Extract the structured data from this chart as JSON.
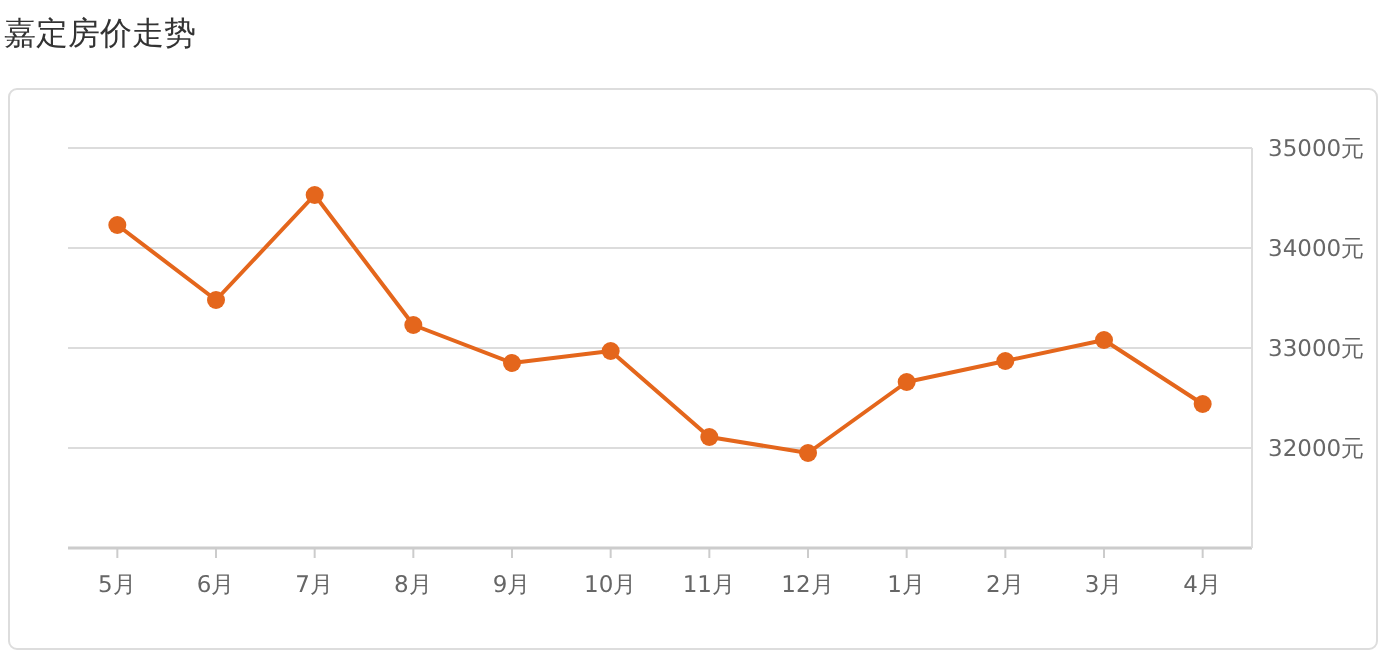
{
  "chart_data": {
    "type": "line",
    "title": "嘉定房价走势",
    "categories": [
      "5月",
      "6月",
      "7月",
      "8月",
      "9月",
      "10月",
      "11月",
      "12月",
      "1月",
      "2月",
      "3月",
      "4月"
    ],
    "series": [
      {
        "color": "#e4661c",
        "values": [
          34230,
          33480,
          34530,
          33230,
          32850,
          32970,
          32110,
          31950,
          32660,
          32870,
          33080,
          32440
        ]
      }
    ],
    "ylim": [
      31000,
      35000
    ],
    "yticks": [
      {
        "value": 32000,
        "label": "32000元"
      },
      {
        "value": 33000,
        "label": "33000元"
      },
      {
        "value": 34000,
        "label": "34000元"
      },
      {
        "value": 35000,
        "label": "35000元"
      }
    ],
    "grid": "y",
    "marker": "circle"
  }
}
